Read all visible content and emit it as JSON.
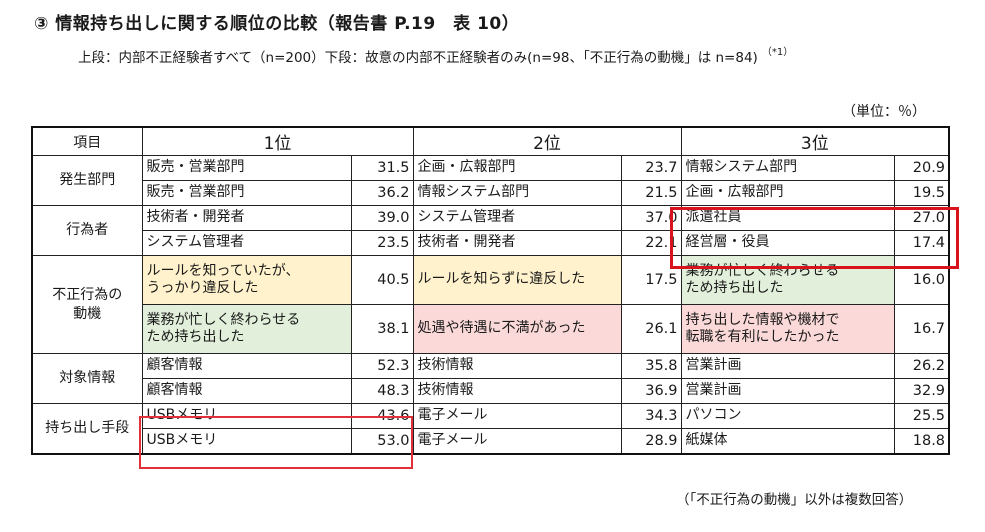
{
  "title": "③ 情報持ち出しに関する順位の比較（報告書 P.19　表 10）",
  "subtitle": "上段：内部不正経験者すべて（n=200）下段：故意の内部不正経験者のみ(n=98、「不正行為の動機」は n=84)",
  "subtitle_note": "（*1）",
  "unit": "（単位：％）",
  "footnote": "（「不正行為の動機」以外は複数回答）",
  "headers": {
    "item": "項目",
    "rank1": "1位",
    "rank2": "2位",
    "rank3": "3位"
  },
  "colors": {
    "yellow": "#fff2cc",
    "green": "#e2efda",
    "pink": "#fbd9d9",
    "highlight": "#d9131c"
  },
  "groups": [
    {
      "category": "発生部門",
      "rows": [
        {
          "r1": "販売・営業部門",
          "v1": "31.5",
          "r2": "企画・広報部門",
          "v2": "23.7",
          "r3": "情報システム部門",
          "v3": "20.9"
        },
        {
          "r1": "販売・営業部門",
          "v1": "36.2",
          "r2": "情報システム部門",
          "v2": "21.5",
          "r3": "企画・広報部門",
          "v3": "19.5"
        }
      ]
    },
    {
      "category": "行為者",
      "rows": [
        {
          "r1": "技術者・開発者",
          "v1": "39.0",
          "r2": "システム管理者",
          "v2": "37.0",
          "r3": "派遣社員",
          "v3": "27.0"
        },
        {
          "r1": "システム管理者",
          "v1": "23.5",
          "r2": "技術者・開発者",
          "v2": "22.1",
          "r3": "経営層・役員",
          "v3": "17.4"
        }
      ]
    },
    {
      "category_line1": "不正行為の",
      "category_line2": "動機",
      "rows": [
        {
          "r1_l1": "ルールを知っていたが、",
          "r1_l2": "うっかり違反した",
          "v1": "40.5",
          "r2_l1": "ルールを知らずに違反した",
          "v2": "17.5",
          "r3_l1": "業務が忙しく終わらせる",
          "r3_l2": "ため持ち出した",
          "v3": "16.0"
        },
        {
          "r1_l1": "業務が忙しく終わらせる",
          "r1_l2": "ため持ち出した",
          "v1": "38.1",
          "r2_l1": "処遇や待遇に不満があった",
          "v2": "26.1",
          "r3_l1": "持ち出した情報や機材で",
          "r3_l2": "転職を有利にしたかった",
          "v3": "16.7"
        }
      ]
    },
    {
      "category": "対象情報",
      "rows": [
        {
          "r1": "顧客情報",
          "v1": "52.3",
          "r2": "技術情報",
          "v2": "35.8",
          "r3": "営業計画",
          "v3": "26.2"
        },
        {
          "r1": "顧客情報",
          "v1": "48.3",
          "r2": "技術情報",
          "v2": "36.9",
          "r3": "営業計画",
          "v3": "32.9"
        }
      ]
    },
    {
      "category": "持ち出し手段",
      "rows": [
        {
          "r1": "USBメモリ",
          "v1": "43.6",
          "r2": "電子メール",
          "v2": "34.3",
          "r3": "パソコン",
          "v3": "25.5"
        },
        {
          "r1": "USBメモリ",
          "v1": "53.0",
          "r2": "電子メール",
          "v2": "28.9",
          "r3": "紙媒体",
          "v3": "18.8"
        }
      ]
    }
  ]
}
